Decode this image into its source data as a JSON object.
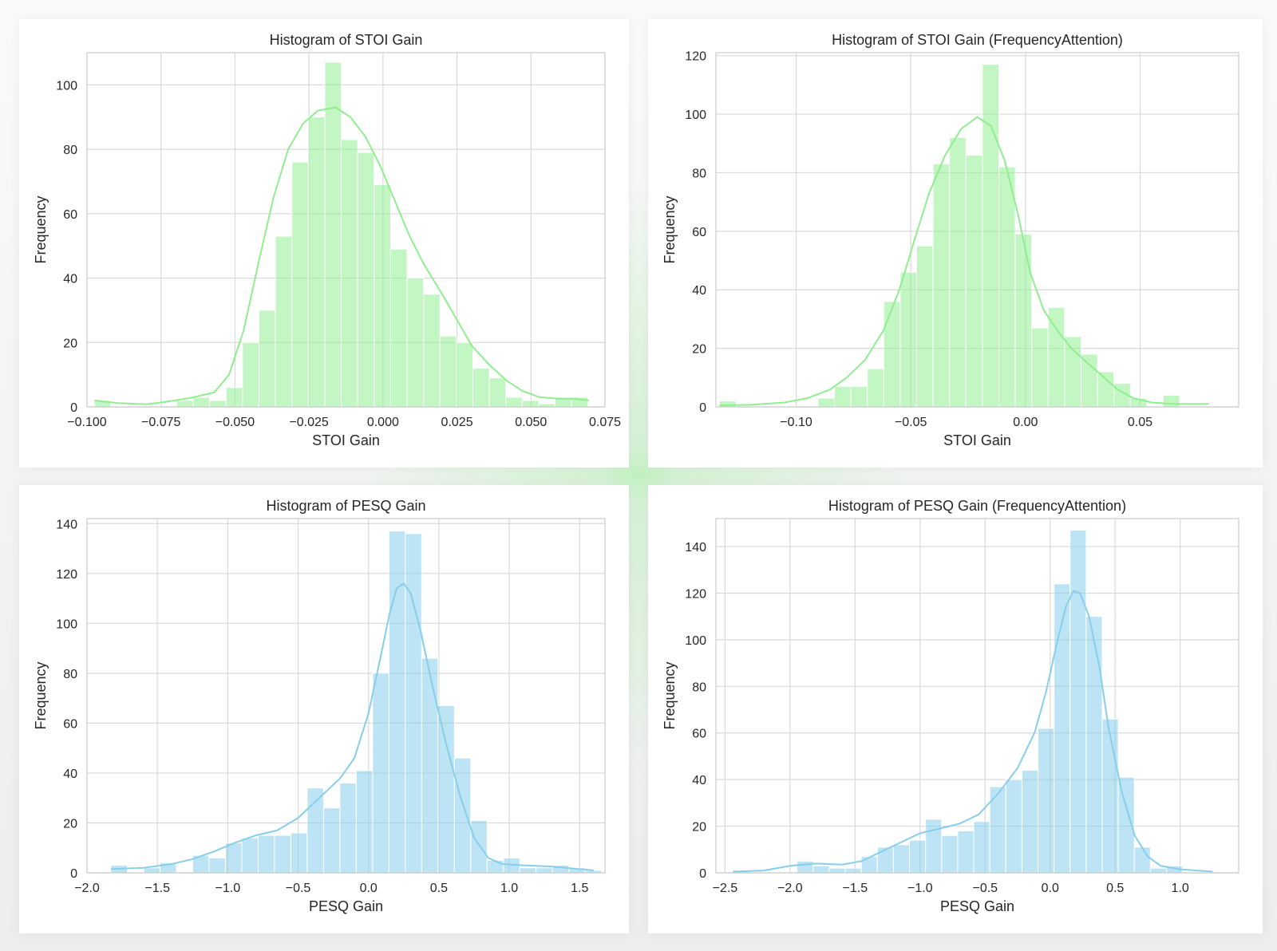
{
  "colors": {
    "stoi": "#90ee90",
    "pesq": "#87ceeb",
    "grid": "#d9d9d9",
    "axes": "#cccccc"
  },
  "chart_data": [
    {
      "type": "bar",
      "subtype": "histogram-with-kde",
      "title": "Histogram of STOI Gain",
      "xlabel": "STOI Gain",
      "ylabel": "Frequency",
      "xlim": [
        -0.1,
        0.075
      ],
      "ylim": [
        0,
        110
      ],
      "xticks": [
        -0.1,
        -0.075,
        -0.05,
        -0.025,
        0.0,
        0.025,
        0.05,
        0.075
      ],
      "xtick_labels": [
        "−0.100",
        "−0.075",
        "−0.050",
        "−0.025",
        "0.000",
        "0.025",
        "0.050",
        "0.075"
      ],
      "yticks": [
        0,
        20,
        40,
        60,
        80,
        100
      ],
      "ytick_labels": [
        "0",
        "20",
        "40",
        "60",
        "80",
        "100"
      ],
      "bin_start": -0.0975,
      "bin_width": 0.00556,
      "counts": [
        2,
        0,
        0,
        0,
        0,
        2,
        3,
        2,
        6,
        20,
        30,
        53,
        76,
        90,
        107,
        83,
        79,
        69,
        49,
        40,
        35,
        22,
        20,
        12,
        9,
        3,
        2,
        1,
        3,
        3
      ],
      "kde": [
        [
          -0.0975,
          2
        ],
        [
          -0.09,
          1.2
        ],
        [
          -0.08,
          0.8
        ],
        [
          -0.073,
          1.6
        ],
        [
          -0.065,
          2.8
        ],
        [
          -0.057,
          4.5
        ],
        [
          -0.052,
          10
        ],
        [
          -0.047,
          24
        ],
        [
          -0.042,
          45
        ],
        [
          -0.037,
          65
        ],
        [
          -0.032,
          80
        ],
        [
          -0.027,
          88
        ],
        [
          -0.022,
          92
        ],
        [
          -0.016,
          93
        ],
        [
          -0.011,
          90
        ],
        [
          -0.006,
          84
        ],
        [
          -0.001,
          75
        ],
        [
          0.004,
          64
        ],
        [
          0.009,
          53
        ],
        [
          0.014,
          44
        ],
        [
          0.02,
          35
        ],
        [
          0.025,
          27
        ],
        [
          0.03,
          19
        ],
        [
          0.036,
          13
        ],
        [
          0.042,
          8
        ],
        [
          0.047,
          5
        ],
        [
          0.053,
          3
        ],
        [
          0.06,
          2.5
        ],
        [
          0.065,
          2.5
        ],
        [
          0.0695,
          2
        ]
      ],
      "grid": true,
      "color": "#90ee90"
    },
    {
      "type": "bar",
      "subtype": "histogram-with-kde",
      "title": "Histogram of STOI Gain (FrequencyAttention)",
      "xlabel": "STOI Gain",
      "ylabel": "Frequency",
      "xlim": [
        -0.135,
        0.093
      ],
      "ylim": [
        0,
        121
      ],
      "xticks": [
        -0.1,
        -0.05,
        0.0,
        0.05
      ],
      "xtick_labels": [
        "−0.10",
        "−0.05",
        "0.00",
        "0.05"
      ],
      "yticks": [
        0,
        20,
        40,
        60,
        80,
        100,
        120
      ],
      "ytick_labels": [
        "0",
        "20",
        "40",
        "60",
        "80",
        "100",
        "120"
      ],
      "bin_start": -0.1335,
      "bin_width": 0.00717,
      "counts": [
        2,
        0,
        0,
        0,
        0,
        0,
        3,
        7,
        7,
        13,
        36,
        46,
        55,
        83,
        92,
        86,
        117,
        82,
        59,
        27,
        34,
        24,
        18,
        12,
        8,
        3,
        0,
        4,
        0,
        0
      ],
      "kde": [
        [
          -0.1335,
          0.5
        ],
        [
          -0.12,
          0.7
        ],
        [
          -0.105,
          1.5
        ],
        [
          -0.095,
          3
        ],
        [
          -0.085,
          6
        ],
        [
          -0.078,
          10
        ],
        [
          -0.07,
          16
        ],
        [
          -0.062,
          26
        ],
        [
          -0.055,
          40
        ],
        [
          -0.048,
          58
        ],
        [
          -0.042,
          73
        ],
        [
          -0.035,
          86
        ],
        [
          -0.028,
          95
        ],
        [
          -0.021,
          99
        ],
        [
          -0.015,
          96
        ],
        [
          -0.009,
          84
        ],
        [
          -0.003,
          65
        ],
        [
          0.002,
          46
        ],
        [
          0.008,
          33
        ],
        [
          0.014,
          26
        ],
        [
          0.02,
          20
        ],
        [
          0.027,
          15
        ],
        [
          0.033,
          11
        ],
        [
          0.04,
          6
        ],
        [
          0.047,
          3
        ],
        [
          0.055,
          1.5
        ],
        [
          0.065,
          1
        ],
        [
          0.08,
          1
        ]
      ],
      "grid": true,
      "color": "#90ee90"
    },
    {
      "type": "bar",
      "subtype": "histogram-with-kde",
      "title": "Histogram of PESQ Gain",
      "xlabel": "PESQ Gain",
      "ylabel": "Frequency",
      "xlim": [
        -2.0,
        1.68
      ],
      "ylim": [
        0,
        142
      ],
      "xticks": [
        -2.0,
        -1.5,
        -1.0,
        -0.5,
        0.0,
        0.5,
        1.0,
        1.5
      ],
      "xtick_labels": [
        "−2.0",
        "−1.5",
        "−1.0",
        "−0.5",
        "0.0",
        "0.5",
        "1.0",
        "1.5"
      ],
      "yticks": [
        0,
        20,
        40,
        60,
        80,
        100,
        120,
        140
      ],
      "ytick_labels": [
        "0",
        "20",
        "40",
        "60",
        "80",
        "100",
        "120",
        "140"
      ],
      "bin_start": -1.83,
      "bin_width": 0.1162,
      "counts": [
        3,
        0,
        2,
        4,
        0,
        7,
        6,
        12,
        14,
        15,
        15,
        16,
        34,
        26,
        36,
        41,
        80,
        137,
        136,
        86,
        67,
        46,
        21,
        5,
        6,
        2,
        2,
        3,
        2,
        1
      ],
      "kde": [
        [
          -1.83,
          1.5
        ],
        [
          -1.6,
          2
        ],
        [
          -1.4,
          3.5
        ],
        [
          -1.25,
          5.5
        ],
        [
          -1.1,
          8.5
        ],
        [
          -0.95,
          12
        ],
        [
          -0.8,
          15
        ],
        [
          -0.65,
          17
        ],
        [
          -0.5,
          22
        ],
        [
          -0.35,
          30
        ],
        [
          -0.2,
          38
        ],
        [
          -0.1,
          46
        ],
        [
          0.0,
          64
        ],
        [
          0.08,
          85
        ],
        [
          0.15,
          104
        ],
        [
          0.2,
          114
        ],
        [
          0.25,
          116
        ],
        [
          0.3,
          112
        ],
        [
          0.37,
          97
        ],
        [
          0.45,
          76
        ],
        [
          0.55,
          52
        ],
        [
          0.65,
          31
        ],
        [
          0.75,
          14
        ],
        [
          0.85,
          6
        ],
        [
          0.95,
          3.5
        ],
        [
          1.1,
          3
        ],
        [
          1.3,
          2.5
        ],
        [
          1.5,
          1.5
        ],
        [
          1.6,
          1
        ]
      ],
      "grid": true,
      "color": "#87ceeb"
    },
    {
      "type": "bar",
      "subtype": "histogram-with-kde",
      "title": "Histogram of PESQ Gain (FrequencyAttention)",
      "xlabel": "PESQ Gain",
      "ylabel": "Frequency",
      "xlim": [
        -2.57,
        1.45
      ],
      "ylim": [
        0,
        152
      ],
      "xticks": [
        -2.5,
        -2.0,
        -1.5,
        -1.0,
        -0.5,
        0.0,
        0.5,
        1.0
      ],
      "xtick_labels": [
        "−2.5",
        "−2.0",
        "−1.5",
        "−1.0",
        "−0.5",
        "0.0",
        "0.5",
        "1.0"
      ],
      "yticks": [
        0,
        20,
        40,
        60,
        80,
        100,
        120,
        140
      ],
      "ytick_labels": [
        "0",
        "20",
        "40",
        "60",
        "80",
        "100",
        "120",
        "140"
      ],
      "bin_start": -2.44,
      "bin_width": 0.1235,
      "counts": [
        1,
        0,
        0,
        0,
        5,
        3,
        2,
        2,
        7,
        11,
        12,
        14,
        23,
        16,
        18,
        22,
        37,
        40,
        44,
        62,
        124,
        147,
        110,
        66,
        41,
        11,
        2,
        3,
        0,
        0
      ],
      "kde": [
        [
          -2.44,
          0.5
        ],
        [
          -2.2,
          1
        ],
        [
          -2.0,
          3
        ],
        [
          -1.8,
          4
        ],
        [
          -1.6,
          3.5
        ],
        [
          -1.45,
          5
        ],
        [
          -1.3,
          9
        ],
        [
          -1.15,
          13
        ],
        [
          -1.0,
          17
        ],
        [
          -0.85,
          19
        ],
        [
          -0.7,
          21
        ],
        [
          -0.55,
          25
        ],
        [
          -0.4,
          34
        ],
        [
          -0.25,
          45
        ],
        [
          -0.12,
          60
        ],
        [
          -0.03,
          78
        ],
        [
          0.05,
          98
        ],
        [
          0.12,
          114
        ],
        [
          0.18,
          121
        ],
        [
          0.23,
          120
        ],
        [
          0.3,
          110
        ],
        [
          0.38,
          88
        ],
        [
          0.45,
          62
        ],
        [
          0.55,
          35
        ],
        [
          0.65,
          16
        ],
        [
          0.75,
          7
        ],
        [
          0.85,
          3
        ],
        [
          1.0,
          1.5
        ],
        [
          1.25,
          0.5
        ]
      ],
      "grid": true,
      "color": "#87ceeb"
    }
  ]
}
